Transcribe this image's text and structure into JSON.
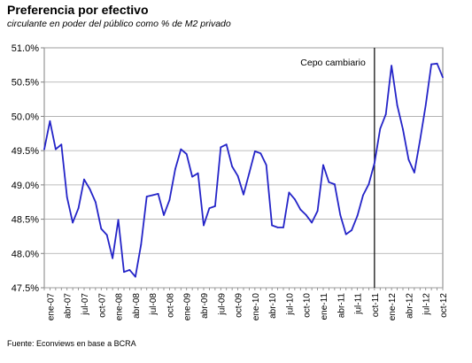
{
  "title": "Preferencia por efectivo",
  "subtitle": "circulante en poder del público como % de M2 privado",
  "source": "Fuente: Econviews en base a BCRA",
  "chart_data": {
    "type": "line",
    "title": "Preferencia por efectivo",
    "subtitle": "circulante en poder del público como % de M2 privado",
    "xlabel": "",
    "ylabel": "",
    "ylim": [
      47.5,
      51.0
    ],
    "yticks": [
      "47.5%",
      "48.0%",
      "48.5%",
      "49.0%",
      "49.5%",
      "50.0%",
      "50.5%",
      "51.0%"
    ],
    "grid": "horizontal",
    "xtick_labels": [
      "ene-07",
      "abr-07",
      "jul-07",
      "oct-07",
      "ene-08",
      "abr-08",
      "jul-08",
      "oct-08",
      "ene-09",
      "abr-09",
      "jul-09",
      "oct-09",
      "ene-10",
      "abr-10",
      "jul-10",
      "oct-10",
      "ene-11",
      "abr-11",
      "jul-11",
      "oct-11",
      "ene-12",
      "abr-12",
      "jul-12",
      "oct-12"
    ],
    "line_color": "#2424c8",
    "annotation": {
      "text": "Cepo cambiario",
      "x": "oct-11"
    },
    "series": [
      {
        "x": [
          "2006-12",
          "ene-07",
          "feb-07",
          "mar-07",
          "abr-07",
          "may-07",
          "jun-07",
          "jul-07",
          "ago-07",
          "sep-07",
          "oct-07",
          "nov-07",
          "dic-07",
          "ene-08",
          "feb-08",
          "mar-08",
          "abr-08",
          "may-08",
          "jun-08",
          "jul-08",
          "ago-08",
          "sep-08",
          "oct-08",
          "nov-08",
          "dic-08",
          "ene-09",
          "feb-09",
          "mar-09",
          "abr-09",
          "may-09",
          "jun-09",
          "jul-09",
          "ago-09",
          "sep-09",
          "oct-09",
          "nov-09",
          "dic-09",
          "ene-10",
          "feb-10",
          "mar-10",
          "abr-10",
          "may-10",
          "jun-10",
          "jul-10",
          "ago-10",
          "sep-10",
          "oct-10",
          "nov-10",
          "dic-10",
          "ene-11",
          "feb-11",
          "mar-11",
          "abr-11",
          "may-11",
          "jun-11",
          "jul-11",
          "ago-11",
          "sep-11",
          "oct-11",
          "nov-11",
          "dic-11",
          "ene-12",
          "feb-12",
          "mar-12",
          "abr-12",
          "may-12",
          "jun-12",
          "jul-12",
          "ago-12",
          "sep-12",
          "oct-12"
        ],
        "values": [
          49.52,
          49.93,
          49.52,
          49.59,
          48.82,
          48.45,
          48.66,
          49.08,
          48.94,
          48.75,
          48.36,
          48.27,
          47.93,
          48.49,
          47.73,
          47.76,
          47.66,
          48.13,
          48.83,
          48.85,
          48.87,
          48.56,
          48.78,
          49.23,
          49.52,
          49.45,
          49.12,
          49.17,
          48.41,
          48.66,
          48.69,
          49.55,
          49.59,
          49.27,
          49.13,
          48.86,
          49.17,
          49.49,
          49.46,
          49.29,
          48.41,
          48.38,
          48.38,
          48.89,
          48.79,
          48.64,
          48.56,
          48.45,
          48.62,
          49.29,
          49.04,
          49.01,
          48.56,
          48.28,
          48.34,
          48.55,
          48.85,
          49.01,
          49.32,
          49.82,
          50.03,
          50.74,
          50.16,
          49.81,
          49.37,
          49.18,
          49.65,
          50.16,
          50.76,
          50.77,
          50.57
        ]
      }
    ]
  }
}
